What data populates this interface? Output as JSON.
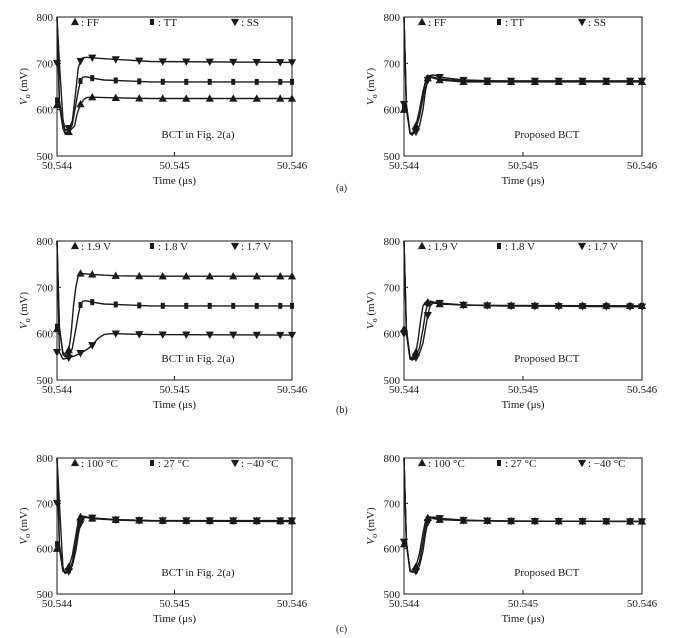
{
  "figure": {
    "row_labels": [
      "(a)",
      "(b)",
      "(c)"
    ]
  },
  "chart_data": [
    {
      "id": "a-left",
      "type": "line",
      "annotation": "BCT in Fig. 2(a)",
      "ylabel_main": "V",
      "ylabel_sub": "o",
      "ylabel_unit": " (mV)",
      "xlabel": "Time (μs)",
      "xlim": [
        50.544,
        50.546
      ],
      "ylim": [
        500,
        800
      ],
      "xticks": [
        "50.544",
        "50.545",
        "50.546"
      ],
      "yticks": [
        "500",
        "600",
        "700",
        "800"
      ],
      "series": [
        {
          "name": ": FF",
          "marker": "triangle-up",
          "x": [
            50.544,
            50.54402,
            50.54405,
            50.54407,
            50.5441,
            50.54415,
            50.54417,
            50.5442,
            50.54423,
            50.54425,
            50.5443,
            50.5444,
            50.5446,
            50.5448,
            50.546
          ],
          "y": [
            800,
            610,
            560,
            548,
            552,
            565,
            590,
            612,
            622,
            626,
            627,
            626,
            625,
            624,
            624
          ]
        },
        {
          "name": ": TT",
          "marker": "square",
          "x": [
            50.544,
            50.54402,
            50.54405,
            50.54407,
            50.5441,
            50.54413,
            50.54416,
            50.54418,
            50.5442,
            50.54422,
            50.54425,
            50.5443,
            50.5444,
            50.5446,
            50.5448,
            50.546
          ],
          "y": [
            800,
            620,
            565,
            550,
            552,
            568,
            610,
            640,
            662,
            670,
            671,
            668,
            664,
            662,
            660,
            660
          ]
        },
        {
          "name": ": SS",
          "marker": "triangle-down",
          "x": [
            50.544,
            50.54402,
            50.54405,
            50.54407,
            50.5441,
            50.54413,
            50.54416,
            50.54418,
            50.5442,
            50.54422,
            50.54425,
            50.5443,
            50.5444,
            50.5446,
            50.5448,
            50.546
          ],
          "y": [
            800,
            700,
            580,
            555,
            560,
            575,
            640,
            690,
            705,
            712,
            713,
            712,
            710,
            707,
            704,
            702
          ]
        }
      ]
    },
    {
      "id": "a-right",
      "type": "line",
      "annotation": "Proposed BCT",
      "ylabel_main": "V",
      "ylabel_sub": "o",
      "ylabel_unit": " (mV)",
      "xlabel": "Time (μs)",
      "xlim": [
        50.544,
        50.546
      ],
      "ylim": [
        500,
        800
      ],
      "xticks": [
        "50.544",
        "50.545",
        "50.546"
      ],
      "yticks": [
        "500",
        "600",
        "700",
        "800"
      ],
      "series": [
        {
          "name": ": FF",
          "marker": "triangle-up",
          "x": [
            50.544,
            50.54402,
            50.54405,
            50.54407,
            50.5441,
            50.54413,
            50.54416,
            50.54418,
            50.5442,
            50.54422,
            50.54425,
            50.5443,
            50.5445,
            50.5448,
            50.546
          ],
          "y": [
            800,
            600,
            550,
            548,
            565,
            600,
            640,
            660,
            668,
            670,
            668,
            664,
            660,
            660,
            660
          ]
        },
        {
          "name": ": TT",
          "marker": "square",
          "x": [
            50.544,
            50.54402,
            50.54405,
            50.54407,
            50.5441,
            50.54413,
            50.54416,
            50.54418,
            50.5442,
            50.54422,
            50.54425,
            50.5443,
            50.5445,
            50.5448,
            50.546
          ],
          "y": [
            800,
            605,
            548,
            545,
            560,
            585,
            625,
            655,
            668,
            672,
            670,
            666,
            662,
            662,
            662
          ]
        },
        {
          "name": ": SS",
          "marker": "triangle-down",
          "x": [
            50.544,
            50.54402,
            50.54405,
            50.54407,
            50.5441,
            50.54413,
            50.54416,
            50.54418,
            50.5442,
            50.54422,
            50.54425,
            50.5443,
            50.5445,
            50.5448,
            50.546
          ],
          "y": [
            800,
            612,
            552,
            548,
            552,
            565,
            600,
            640,
            664,
            674,
            675,
            670,
            664,
            662,
            662
          ]
        }
      ]
    },
    {
      "id": "b-left",
      "type": "line",
      "annotation": "BCT in Fig. 2(a)",
      "ylabel_main": "V",
      "ylabel_sub": "o",
      "ylabel_unit": " (mV)",
      "xlabel": "Time (μs)",
      "xlim": [
        50.544,
        50.546
      ],
      "ylim": [
        500,
        800
      ],
      "xticks": [
        "50.544",
        "50.545",
        "50.546"
      ],
      "yticks": [
        "500",
        "600",
        "700",
        "800"
      ],
      "series": [
        {
          "name": ": 1.9 V",
          "marker": "triangle-up",
          "x": [
            50.544,
            50.54402,
            50.54405,
            50.54407,
            50.5441,
            50.54412,
            50.54414,
            50.54416,
            50.54418,
            50.5442,
            50.5443,
            50.5445,
            50.5448,
            50.546
          ],
          "y": [
            800,
            610,
            560,
            555,
            565,
            600,
            660,
            700,
            725,
            730,
            728,
            725,
            724,
            724
          ]
        },
        {
          "name": ": 1.8 V",
          "marker": "square",
          "x": [
            50.544,
            50.54402,
            50.54405,
            50.54407,
            50.5441,
            50.54413,
            50.54416,
            50.54418,
            50.5442,
            50.54422,
            50.54425,
            50.5443,
            50.5444,
            50.5446,
            50.5448,
            50.546
          ],
          "y": [
            800,
            615,
            555,
            550,
            552,
            568,
            610,
            640,
            662,
            670,
            671,
            668,
            664,
            662,
            660,
            660
          ]
        },
        {
          "name": ": 1.7 V",
          "marker": "triangle-down",
          "x": [
            50.544,
            50.54402,
            50.54405,
            50.54407,
            50.5441,
            50.54415,
            50.5442,
            50.54425,
            50.5443,
            50.54435,
            50.5444,
            50.54445,
            50.5445,
            50.5446,
            50.5448,
            50.546
          ],
          "y": [
            800,
            560,
            545,
            546,
            548,
            552,
            558,
            565,
            575,
            590,
            598,
            600,
            600,
            599,
            598,
            597
          ]
        }
      ]
    },
    {
      "id": "b-right",
      "type": "line",
      "annotation": "Proposed BCT",
      "ylabel_main": "V",
      "ylabel_sub": "o",
      "ylabel_unit": " (mV)",
      "xlabel": "Time (μs)",
      "xlim": [
        50.544,
        50.546
      ],
      "ylim": [
        500,
        800
      ],
      "xticks": [
        "50.544",
        "50.545",
        "50.546"
      ],
      "yticks": [
        "500",
        "600",
        "700",
        "800"
      ],
      "series": [
        {
          "name": ": 1.9 V",
          "marker": "triangle-up",
          "x": [
            50.544,
            50.54402,
            50.54405,
            50.54407,
            50.5441,
            50.54412,
            50.54414,
            50.54416,
            50.54418,
            50.5442,
            50.54425,
            50.5443,
            50.5445,
            50.5448,
            50.546
          ],
          "y": [
            800,
            610,
            550,
            548,
            560,
            590,
            630,
            660,
            668,
            668,
            666,
            664,
            662,
            661,
            660
          ]
        },
        {
          "name": ": 1.8 V",
          "marker": "square",
          "x": [
            50.544,
            50.54402,
            50.54405,
            50.54407,
            50.5441,
            50.54413,
            50.54416,
            50.54418,
            50.5442,
            50.54422,
            50.54425,
            50.5443,
            50.5445,
            50.5448,
            50.546
          ],
          "y": [
            800,
            605,
            548,
            545,
            552,
            570,
            610,
            645,
            665,
            670,
            668,
            665,
            662,
            660,
            660
          ]
        },
        {
          "name": ": 1.7 V",
          "marker": "triangle-down",
          "x": [
            50.544,
            50.54402,
            50.54405,
            50.54407,
            50.5441,
            50.54413,
            50.54416,
            50.54418,
            50.5442,
            50.54422,
            50.54425,
            50.54428,
            50.5443,
            50.5445,
            50.5448,
            50.546
          ],
          "y": [
            800,
            600,
            545,
            543,
            548,
            558,
            580,
            610,
            640,
            660,
            668,
            668,
            666,
            662,
            660,
            658
          ]
        }
      ]
    },
    {
      "id": "c-left",
      "type": "line",
      "annotation": "BCT in Fig. 2(a)",
      "ylabel_main": "V",
      "ylabel_sub": "o",
      "ylabel_unit": " (mV)",
      "xlabel": "Time (μs)",
      "xlim": [
        50.544,
        50.546
      ],
      "ylim": [
        500,
        800
      ],
      "xticks": [
        "50.544",
        "50.545",
        "50.546"
      ],
      "yticks": [
        "500",
        "600",
        "700",
        "800"
      ],
      "series": [
        {
          "name": ": 100 °C",
          "marker": "triangle-up",
          "x": [
            50.544,
            50.54402,
            50.54405,
            50.54407,
            50.5441,
            50.54413,
            50.54416,
            50.54418,
            50.5442,
            50.54422,
            50.54425,
            50.5443,
            50.5445,
            50.5448,
            50.546
          ],
          "y": [
            800,
            600,
            550,
            548,
            560,
            585,
            630,
            660,
            670,
            672,
            670,
            667,
            664,
            662,
            661
          ]
        },
        {
          "name": ": 27 °C",
          "marker": "square",
          "x": [
            50.544,
            50.54402,
            50.54405,
            50.54407,
            50.5441,
            50.54413,
            50.54416,
            50.54418,
            50.5442,
            50.54422,
            50.54425,
            50.5443,
            50.5445,
            50.5448,
            50.546
          ],
          "y": [
            800,
            610,
            552,
            548,
            552,
            570,
            612,
            645,
            664,
            670,
            669,
            666,
            663,
            661,
            660
          ]
        },
        {
          "name": ": −40 °C",
          "marker": "triangle-down",
          "x": [
            50.544,
            50.54402,
            50.54405,
            50.54407,
            50.5441,
            50.54413,
            50.54416,
            50.54418,
            50.5442,
            50.54422,
            50.54425,
            50.5443,
            50.5445,
            50.5448,
            50.546
          ],
          "y": [
            800,
            700,
            560,
            545,
            550,
            562,
            595,
            630,
            655,
            666,
            670,
            668,
            664,
            662,
            662
          ]
        }
      ]
    },
    {
      "id": "c-right",
      "type": "line",
      "annotation": "Proposed BCT",
      "ylabel_main": "V",
      "ylabel_sub": "o",
      "ylabel_unit": " (mV)",
      "xlabel": "Time (μs)",
      "xlim": [
        50.544,
        50.546
      ],
      "ylim": [
        500,
        800
      ],
      "xticks": [
        "50.544",
        "50.545",
        "50.546"
      ],
      "yticks": [
        "500",
        "600",
        "700",
        "800"
      ],
      "series": [
        {
          "name": ": 100 °C",
          "marker": "triangle-up",
          "x": [
            50.544,
            50.54402,
            50.54405,
            50.54407,
            50.5441,
            50.54413,
            50.54416,
            50.54418,
            50.5442,
            50.54422,
            50.54425,
            50.5443,
            50.5445,
            50.5448,
            50.546
          ],
          "y": [
            800,
            610,
            550,
            548,
            560,
            590,
            635,
            660,
            668,
            668,
            666,
            664,
            662,
            661,
            660
          ]
        },
        {
          "name": ": 27 °C",
          "marker": "square",
          "x": [
            50.544,
            50.54402,
            50.54405,
            50.54407,
            50.5441,
            50.54413,
            50.54416,
            50.54418,
            50.5442,
            50.54422,
            50.54425,
            50.5443,
            50.5445,
            50.5448,
            50.546
          ],
          "y": [
            800,
            612,
            552,
            548,
            552,
            572,
            615,
            648,
            665,
            670,
            668,
            665,
            662,
            661,
            660
          ]
        },
        {
          "name": ": −40 °C",
          "marker": "triangle-down",
          "x": [
            50.544,
            50.54402,
            50.54405,
            50.54407,
            50.5441,
            50.54413,
            50.54416,
            50.54418,
            50.5442,
            50.54422,
            50.54425,
            50.5443,
            50.5445,
            50.5448,
            50.546
          ],
          "y": [
            800,
            615,
            555,
            548,
            550,
            562,
            595,
            632,
            658,
            668,
            670,
            667,
            663,
            661,
            660
          ]
        }
      ]
    }
  ]
}
